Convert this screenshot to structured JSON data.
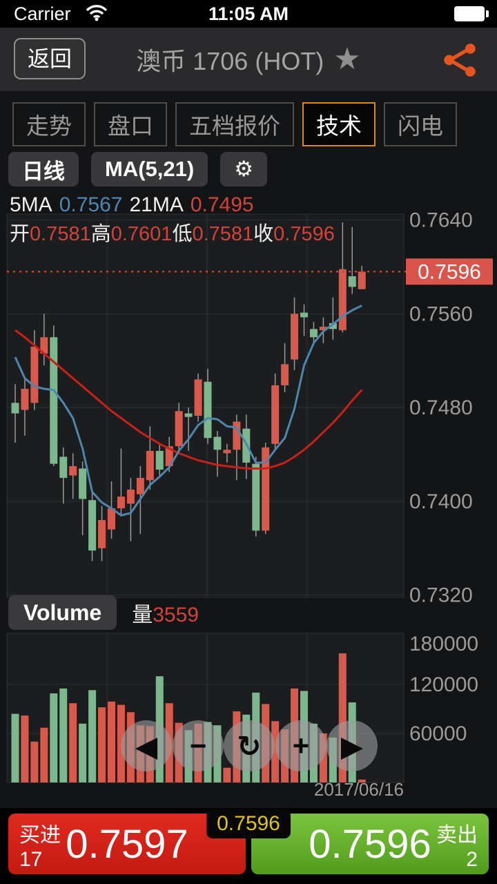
{
  "status_bar": {
    "carrier": "Carrier",
    "time": "11:05 AM"
  },
  "header": {
    "back_label": "返回",
    "title": "澳币 1706 (HOT)",
    "favorite_icon": "★"
  },
  "tabs": [
    {
      "label": "走势",
      "active": false
    },
    {
      "label": "盘口",
      "active": false
    },
    {
      "label": "五档报价",
      "active": false
    },
    {
      "label": "技术",
      "active": true
    },
    {
      "label": "闪电",
      "active": false
    }
  ],
  "toolbar": {
    "period_label": "日线",
    "ma_label": "MA(5,21)",
    "settings_icon": "⚙"
  },
  "legend": {
    "ma5_label": "5MA",
    "ma5_value": "0.7567",
    "ma21_label": "21MA",
    "ma21_value": "0.7495"
  },
  "ohlc": {
    "open_label": "开",
    "open": "0.7581",
    "high_label": "高",
    "high": "0.7601",
    "low_label": "低",
    "low": "0.7581",
    "close_label": "收",
    "close": "0.7596"
  },
  "price_axis": {
    "current": "0.7596"
  },
  "volume_section": {
    "button_label": "Volume",
    "qty_label": "量",
    "qty_value": "3559"
  },
  "nav": {
    "buttons": [
      {
        "name": "pan-left",
        "glyph": "◀"
      },
      {
        "name": "zoom-out",
        "glyph": "−"
      },
      {
        "name": "reset",
        "glyph": "↻"
      },
      {
        "name": "zoom-in",
        "glyph": "+"
      },
      {
        "name": "pan-right",
        "glyph": "▶"
      }
    ]
  },
  "bottom": {
    "buy_label": "买进",
    "buy_price": "0.7597",
    "buy_count": "17",
    "sell_label": "卖出",
    "sell_price": "0.7596",
    "sell_count": "2",
    "last_badge": "0.7596"
  },
  "colors": {
    "up": "#d75a4c",
    "down": "#7db78e",
    "wick": "#9a9a9a",
    "ma5_line": "#4f86ae",
    "ma21_line": "#c92018",
    "plot_bg": "#1b1d1f",
    "grid": "#2d2f31",
    "axis_text": "#9b9b9b",
    "current_line": "#dd3b27",
    "tag_bg": "#d9544a",
    "tag_text": "#ffffff",
    "accent_orange": "#df8a1f",
    "share_orange": "#e8541e",
    "buy_red": "#d2231b",
    "sell_green": "#62ae28",
    "badge_yellow": "#e3c414"
  },
  "chart_data": {
    "type": "candlestick+volume",
    "title": "澳币 1706 (HOT) 日线 MA(5,21)",
    "price_axis_ticks": [
      0.764,
      0.756,
      0.748,
      0.74,
      0.732
    ],
    "volume_axis_ticks": [
      180000,
      120000,
      60000
    ],
    "current_price": 0.7596,
    "date_label": "2017/06/16",
    "candles_note": "each candle = [open, high, low, close, volume]; red=up green=down",
    "candles": [
      [
        0.7484,
        0.75,
        0.745,
        0.7475,
        84000
      ],
      [
        0.7478,
        0.7506,
        0.7456,
        0.7496,
        82000
      ],
      [
        0.7484,
        0.7546,
        0.7478,
        0.7532,
        50000
      ],
      [
        0.7526,
        0.756,
        0.7516,
        0.754,
        67000
      ],
      [
        0.754,
        0.755,
        0.743,
        0.7432,
        109000
      ],
      [
        0.7438,
        0.7446,
        0.7398,
        0.742,
        115000
      ],
      [
        0.7422,
        0.7441,
        0.7402,
        0.743,
        97000
      ],
      [
        0.7428,
        0.7434,
        0.7371,
        0.7402,
        72000
      ],
      [
        0.7401,
        0.7407,
        0.7349,
        0.7358,
        113000
      ],
      [
        0.736,
        0.7396,
        0.7349,
        0.7384,
        92000
      ],
      [
        0.7376,
        0.7417,
        0.7368,
        0.7394,
        99000
      ],
      [
        0.7394,
        0.7445,
        0.7388,
        0.7404,
        95000
      ],
      [
        0.7398,
        0.742,
        0.7366,
        0.741,
        86000
      ],
      [
        0.7406,
        0.743,
        0.7372,
        0.742,
        70000
      ],
      [
        0.7418,
        0.7464,
        0.741,
        0.7443,
        69000
      ],
      [
        0.7443,
        0.745,
        0.742,
        0.7427,
        130000
      ],
      [
        0.743,
        0.7455,
        0.7425,
        0.7447,
        97000
      ],
      [
        0.7447,
        0.7484,
        0.744,
        0.7477,
        73000
      ],
      [
        0.7475,
        0.748,
        0.7443,
        0.7472,
        64000
      ],
      [
        0.7473,
        0.7509,
        0.7468,
        0.7504,
        72000
      ],
      [
        0.7502,
        0.7513,
        0.7449,
        0.7454,
        74000
      ],
      [
        0.7455,
        0.746,
        0.7421,
        0.7444,
        70000
      ],
      [
        0.7441,
        0.7449,
        0.7433,
        0.7444,
        18000
      ],
      [
        0.7444,
        0.7474,
        0.7418,
        0.7468,
        87000
      ],
      [
        0.7462,
        0.7474,
        0.7419,
        0.7433,
        83000
      ],
      [
        0.7432,
        0.7438,
        0.737,
        0.7375,
        110000
      ],
      [
        0.7375,
        0.745,
        0.7372,
        0.7446,
        96000
      ],
      [
        0.7449,
        0.7509,
        0.7443,
        0.7499,
        75000
      ],
      [
        0.7499,
        0.7535,
        0.7493,
        0.7517,
        65000
      ],
      [
        0.7521,
        0.7574,
        0.7512,
        0.756,
        115000
      ],
      [
        0.7561,
        0.7568,
        0.7541,
        0.7557,
        112000
      ],
      [
        0.7547,
        0.7553,
        0.7533,
        0.754,
        72000
      ],
      [
        0.7546,
        0.7557,
        0.7535,
        0.7549,
        60000
      ],
      [
        0.7552,
        0.7574,
        0.7538,
        0.7547,
        55000
      ],
      [
        0.7546,
        0.7638,
        0.7544,
        0.7598,
        158000
      ],
      [
        0.7592,
        0.7634,
        0.7577,
        0.7583,
        98000
      ],
      [
        0.7581,
        0.7601,
        0.7581,
        0.7596,
        3559
      ]
    ],
    "ma5": [
      0.7523,
      0.7505,
      0.7498,
      0.7496,
      0.7495,
      0.7484,
      0.7471,
      0.7445,
      0.7408,
      0.7399,
      0.7394,
      0.7388,
      0.739,
      0.7402,
      0.7414,
      0.7421,
      0.7429,
      0.7443,
      0.7453,
      0.7465,
      0.7471,
      0.747,
      0.7464,
      0.7463,
      0.7449,
      0.7433,
      0.7433,
      0.7444,
      0.7454,
      0.7479,
      0.7516,
      0.7535,
      0.7545,
      0.7551,
      0.7558,
      0.7563,
      0.7567
    ],
    "ma21": [
      0.7546,
      0.754,
      0.7533,
      0.7526,
      0.7519,
      0.7512,
      0.7505,
      0.7498,
      0.7491,
      0.7484,
      0.7477,
      0.7471,
      0.7465,
      0.7459,
      0.7454,
      0.7449,
      0.7445,
      0.7441,
      0.7438,
      0.7435,
      0.7433,
      0.7431,
      0.743,
      0.7429,
      0.7428,
      0.7428,
      0.7428,
      0.743,
      0.7433,
      0.7438,
      0.7444,
      0.7451,
      0.7459,
      0.7467,
      0.7476,
      0.7486,
      0.7495
    ]
  }
}
